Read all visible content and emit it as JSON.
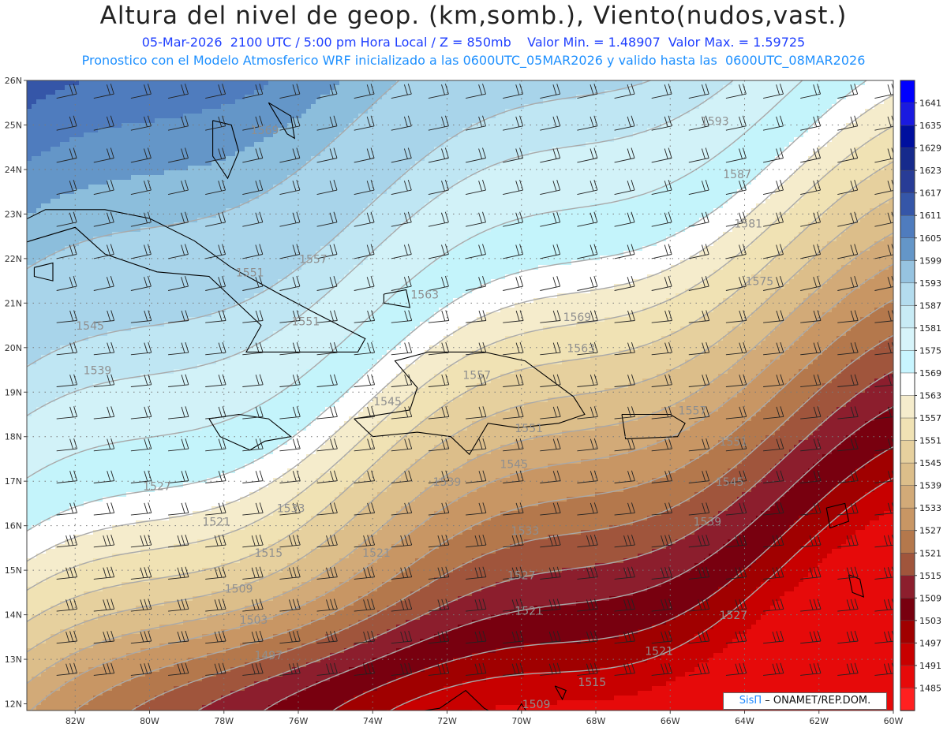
{
  "header": {
    "title": "Altura del nivel de geop. (km,somb.), Viento(nudos,vast.)",
    "line1": "05-Mar-2026  2100 UTC / 5:00 pm Hora Local / Z = 850mb    Valor Min. = 1.48907  Valor Max. = 1.59725",
    "line2": "Pronostico con el Modelo Atmosferico WRF inicializado a las 0600UTC_05MAR2026 y valido hasta las  0600UTC_08MAR2026"
  },
  "map": {
    "lat_labels": [
      "26N",
      "25N",
      "24N",
      "23N",
      "22N",
      "21N",
      "20N",
      "19N",
      "18N",
      "17N",
      "16N",
      "15N",
      "14N",
      "13N",
      "12N"
    ],
    "lon_labels": [
      "82W",
      "80W",
      "78W",
      "76W",
      "74W",
      "72W",
      "70W",
      "68W",
      "66W",
      "64W",
      "62W",
      "60W"
    ],
    "contour_labels": [
      {
        "text": "1593",
        "lon": -64.8,
        "lat": 25.0
      },
      {
        "text": "1587",
        "lon": -64.2,
        "lat": 23.8
      },
      {
        "text": "1581",
        "lon": -63.9,
        "lat": 22.7
      },
      {
        "text": "1575",
        "lon": -63.6,
        "lat": 21.4
      },
      {
        "text": "1569",
        "lon": -76.9,
        "lat": 24.8
      },
      {
        "text": "1569",
        "lon": -68.5,
        "lat": 20.6
      },
      {
        "text": "1563",
        "lon": -72.6,
        "lat": 21.1
      },
      {
        "text": "1563",
        "lon": -68.4,
        "lat": 19.9
      },
      {
        "text": "1557",
        "lon": -75.6,
        "lat": 21.9
      },
      {
        "text": "1557",
        "lon": -71.2,
        "lat": 19.3
      },
      {
        "text": "1557",
        "lon": -65.4,
        "lat": 18.5
      },
      {
        "text": "1551",
        "lon": -77.3,
        "lat": 21.6
      },
      {
        "text": "1551",
        "lon": -75.8,
        "lat": 20.5
      },
      {
        "text": "1551",
        "lon": -69.8,
        "lat": 18.1
      },
      {
        "text": "1551",
        "lon": -64.3,
        "lat": 17.8
      },
      {
        "text": "1545",
        "lon": -81.6,
        "lat": 20.4
      },
      {
        "text": "1545",
        "lon": -73.6,
        "lat": 18.7
      },
      {
        "text": "1545",
        "lon": -70.2,
        "lat": 17.3
      },
      {
        "text": "1545",
        "lon": -64.4,
        "lat": 16.9
      },
      {
        "text": "1539",
        "lon": -81.4,
        "lat": 19.4
      },
      {
        "text": "1539",
        "lon": -72.0,
        "lat": 16.9
      },
      {
        "text": "1539",
        "lon": -65.0,
        "lat": 16.0
      },
      {
        "text": "1533",
        "lon": -76.2,
        "lat": 16.3
      },
      {
        "text": "1533",
        "lon": -69.9,
        "lat": 15.8
      },
      {
        "text": "1527",
        "lon": -79.8,
        "lat": 16.8
      },
      {
        "text": "1527",
        "lon": -70.0,
        "lat": 14.8
      },
      {
        "text": "1527",
        "lon": -64.3,
        "lat": 13.9
      },
      {
        "text": "1521",
        "lon": -78.2,
        "lat": 16.0
      },
      {
        "text": "1521",
        "lon": -73.9,
        "lat": 15.3
      },
      {
        "text": "1521",
        "lon": -69.8,
        "lat": 14.0
      },
      {
        "text": "1521",
        "lon": -66.3,
        "lat": 13.1
      },
      {
        "text": "1515",
        "lon": -76.8,
        "lat": 15.3
      },
      {
        "text": "1515",
        "lon": -68.1,
        "lat": 12.4
      },
      {
        "text": "1509",
        "lon": -77.6,
        "lat": 14.5
      },
      {
        "text": "1509",
        "lon": -69.6,
        "lat": 11.9
      },
      {
        "text": "1503",
        "lon": -77.2,
        "lat": 13.8
      },
      {
        "text": "1497",
        "lon": -76.8,
        "lat": 13.0
      }
    ]
  },
  "colorbar": {
    "levels": [
      "1641",
      "1635",
      "1629",
      "1623",
      "1617",
      "1611",
      "1605",
      "1599",
      "1593",
      "1587",
      "1581",
      "1575",
      "1569",
      "1563",
      "1557",
      "1551",
      "1545",
      "1539",
      "1533",
      "1527",
      "1521",
      "1515",
      "1509",
      "1503",
      "1497",
      "1491",
      "1485"
    ],
    "colors": [
      "#0000ff",
      "#1a1ae0",
      "#000f9e",
      "#162a8c",
      "#283c96",
      "#3556a8",
      "#4f7cbe",
      "#6496c8",
      "#96c3e0",
      "#b4dcee",
      "#c8ebf5",
      "#d7f4fa",
      "#c8f5ff",
      "#ffffff",
      "#f5eccc",
      "#f0e2b4",
      "#e6d09e",
      "#dcbe8a",
      "#d2aa78",
      "#c89664",
      "#b4784c",
      "#a0553c",
      "#8c1e2d",
      "#78000f",
      "#a00000",
      "#c80000",
      "#e60a0a",
      "#ff2020"
    ]
  },
  "credit": {
    "brand": "SisΠ",
    "org": " – ONAMET/REP.DOM."
  }
}
